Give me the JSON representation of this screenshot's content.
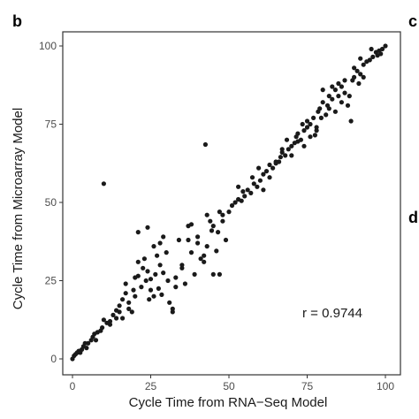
{
  "panel": {
    "letter": "b"
  },
  "neighbor_panels": {
    "top_letter": "c",
    "bottom_letter": "d"
  },
  "chart_data": {
    "type": "scatter",
    "xlabel": "Cycle Time from RNA−Seq Model",
    "ylabel": "Cycle Time from Microarray Model",
    "xlim": [
      0,
      100
    ],
    "ylim": [
      0,
      100
    ],
    "x_ticks": [
      "0",
      "25",
      "50",
      "75",
      "100"
    ],
    "y_ticks": [
      "0",
      "25",
      "50",
      "75",
      "100"
    ],
    "x_tick_values": [
      0,
      25,
      50,
      75,
      100
    ],
    "y_tick_values": [
      0,
      25,
      50,
      75,
      100
    ],
    "grid": false,
    "annotation": "r = 0.9744",
    "point_color": "#1a1a1a",
    "points": [
      [
        0,
        0
      ],
      [
        0.5,
        1
      ],
      [
        1,
        1.5
      ],
      [
        1.5,
        2
      ],
      [
        2,
        2.5
      ],
      [
        3,
        3
      ],
      [
        3.5,
        4
      ],
      [
        4,
        5
      ],
      [
        5,
        5
      ],
      [
        6,
        6
      ],
      [
        6.5,
        7
      ],
      [
        7,
        8
      ],
      [
        8,
        8.5
      ],
      [
        9,
        9
      ],
      [
        9.5,
        10
      ],
      [
        10,
        56
      ],
      [
        10,
        12.5
      ],
      [
        11,
        11.5
      ],
      [
        12,
        12
      ],
      [
        12,
        11
      ],
      [
        13,
        14
      ],
      [
        14,
        13
      ],
      [
        15,
        15
      ],
      [
        15,
        17
      ],
      [
        16,
        19
      ],
      [
        17,
        21
      ],
      [
        17,
        24
      ],
      [
        18,
        16
      ],
      [
        19,
        15
      ],
      [
        19.5,
        22
      ],
      [
        20,
        20
      ],
      [
        20,
        26
      ],
      [
        21,
        31
      ],
      [
        21,
        40.5
      ],
      [
        22,
        23
      ],
      [
        22.5,
        29
      ],
      [
        23,
        32
      ],
      [
        24,
        28
      ],
      [
        24,
        42
      ],
      [
        24.5,
        19
      ],
      [
        25,
        22
      ],
      [
        25,
        25.5
      ],
      [
        26,
        20
      ],
      [
        26,
        36
      ],
      [
        27,
        33
      ],
      [
        27.5,
        22.5
      ],
      [
        28,
        30
      ],
      [
        28,
        37
      ],
      [
        29,
        39
      ],
      [
        29,
        27.5
      ],
      [
        30,
        34
      ],
      [
        31,
        18
      ],
      [
        32,
        16
      ],
      [
        32,
        15
      ],
      [
        33,
        23
      ],
      [
        33,
        26
      ],
      [
        34,
        38
      ],
      [
        35,
        30
      ],
      [
        35,
        29
      ],
      [
        36,
        24
      ],
      [
        37,
        38
      ],
      [
        37,
        42.5
      ],
      [
        38,
        43
      ],
      [
        38,
        34
      ],
      [
        39,
        27
      ],
      [
        40,
        39
      ],
      [
        40,
        37
      ],
      [
        41,
        32
      ],
      [
        42,
        31
      ],
      [
        42,
        33
      ],
      [
        42.5,
        68.5
      ],
      [
        43,
        36
      ],
      [
        43,
        46
      ],
      [
        44,
        44
      ],
      [
        45,
        27
      ],
      [
        45,
        42.5
      ],
      [
        46,
        34.5
      ],
      [
        47,
        27
      ],
      [
        47,
        47
      ],
      [
        48,
        44
      ],
      [
        48,
        46
      ],
      [
        49,
        38
      ],
      [
        50,
        47
      ],
      [
        51,
        49
      ],
      [
        52,
        50
      ],
      [
        53,
        51
      ],
      [
        53,
        55
      ],
      [
        54,
        50.5
      ],
      [
        55,
        52
      ],
      [
        56,
        54
      ],
      [
        57,
        53
      ],
      [
        58,
        56
      ],
      [
        59,
        55
      ],
      [
        60,
        57
      ],
      [
        61,
        59
      ],
      [
        61,
        54
      ],
      [
        62,
        60
      ],
      [
        63,
        58
      ],
      [
        63,
        62
      ],
      [
        64,
        61
      ],
      [
        65,
        63
      ],
      [
        65,
        62.5
      ],
      [
        66,
        63
      ],
      [
        67,
        66
      ],
      [
        67,
        67
      ],
      [
        68,
        65
      ],
      [
        69,
        67
      ],
      [
        70,
        68
      ],
      [
        70,
        65
      ],
      [
        71,
        69
      ],
      [
        71.5,
        71
      ],
      [
        72,
        72
      ],
      [
        72,
        69.5
      ],
      [
        73,
        70
      ],
      [
        74,
        73
      ],
      [
        74,
        68
      ],
      [
        75,
        74
      ],
      [
        75,
        76
      ],
      [
        76,
        75
      ],
      [
        76,
        71
      ],
      [
        77,
        77
      ],
      [
        78,
        74
      ],
      [
        78,
        73
      ],
      [
        78.5,
        79
      ],
      [
        79,
        80
      ],
      [
        80,
        82
      ],
      [
        80,
        86
      ],
      [
        81,
        78
      ],
      [
        82,
        80
      ],
      [
        82,
        84
      ],
      [
        83,
        87
      ],
      [
        83,
        83
      ],
      [
        84,
        86
      ],
      [
        84,
        79
      ],
      [
        85,
        84
      ],
      [
        85,
        88
      ],
      [
        86,
        82
      ],
      [
        86,
        87
      ],
      [
        87,
        85
      ],
      [
        87,
        89
      ],
      [
        88,
        81
      ],
      [
        88.5,
        84
      ],
      [
        89,
        76
      ],
      [
        90,
        90
      ],
      [
        90,
        93
      ],
      [
        91,
        92
      ],
      [
        92,
        96
      ],
      [
        92,
        91
      ],
      [
        93,
        94
      ],
      [
        93,
        90
      ],
      [
        94,
        95
      ],
      [
        95,
        95.5
      ],
      [
        95.5,
        99
      ],
      [
        96,
        96.5
      ],
      [
        97,
        98
      ],
      [
        97.5,
        97
      ],
      [
        98,
        98.5
      ],
      [
        98.5,
        97.5
      ],
      [
        99,
        99
      ],
      [
        100,
        100
      ],
      [
        2.5,
        2
      ],
      [
        4.5,
        3.5
      ],
      [
        7.5,
        6
      ],
      [
        14,
        15.5
      ],
      [
        16,
        13
      ],
      [
        18,
        18
      ],
      [
        21,
        26.5
      ],
      [
        23.5,
        25
      ],
      [
        26.5,
        27
      ],
      [
        28.5,
        20.5
      ],
      [
        30.5,
        25
      ],
      [
        44.5,
        41
      ],
      [
        46.5,
        40.5
      ],
      [
        54.5,
        53.5
      ],
      [
        57.5,
        58
      ],
      [
        59.5,
        61
      ],
      [
        66.5,
        64.5
      ],
      [
        68.5,
        70
      ],
      [
        73.5,
        75
      ],
      [
        77.5,
        71.5
      ],
      [
        79.5,
        77
      ],
      [
        81.5,
        81
      ],
      [
        89.5,
        89
      ],
      [
        91.5,
        88
      ]
    ]
  }
}
